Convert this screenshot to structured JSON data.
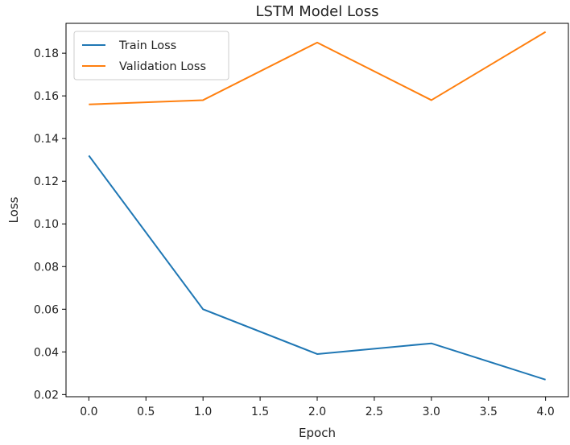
{
  "chart_data": {
    "type": "line",
    "title": "LSTM Model Loss",
    "xlabel": "Epoch",
    "ylabel": "Loss",
    "x": [
      0,
      1,
      2,
      3,
      4
    ],
    "xlim": [
      -0.2,
      4.2
    ],
    "ylim": [
      0.019,
      0.194
    ],
    "xticks": [
      0.0,
      0.5,
      1.0,
      1.5,
      2.0,
      2.5,
      3.0,
      3.5,
      4.0
    ],
    "xtick_labels": [
      "0.0",
      "0.5",
      "1.0",
      "1.5",
      "2.0",
      "2.5",
      "3.0",
      "3.5",
      "4.0"
    ],
    "yticks": [
      0.02,
      0.04,
      0.06,
      0.08,
      0.1,
      0.12,
      0.14,
      0.16,
      0.18
    ],
    "ytick_labels": [
      "0.02",
      "0.04",
      "0.06",
      "0.08",
      "0.10",
      "0.12",
      "0.14",
      "0.16",
      "0.18"
    ],
    "grid": false,
    "legend_position": "top-left",
    "series": [
      {
        "name": "Train Loss",
        "color": "#1f77b4",
        "values": [
          0.132,
          0.06,
          0.039,
          0.044,
          0.027
        ]
      },
      {
        "name": "Validation Loss",
        "color": "#ff7f0e",
        "values": [
          0.156,
          0.158,
          0.185,
          0.158,
          0.19
        ]
      }
    ]
  }
}
